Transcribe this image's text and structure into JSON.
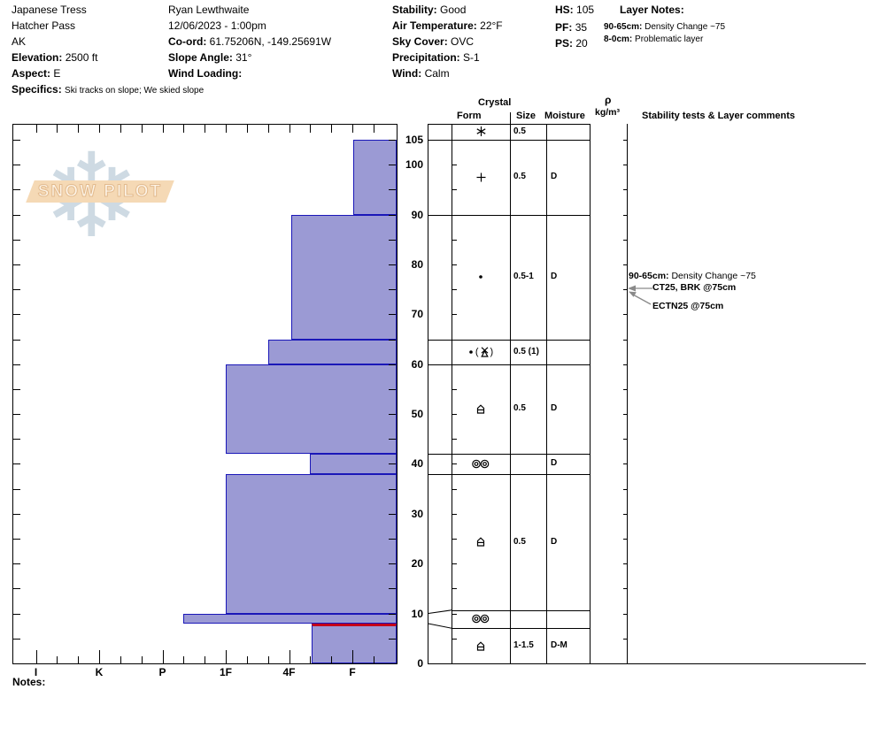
{
  "header": {
    "pit_name": "Japanese Tress",
    "location": "Hatcher Pass",
    "state": "AK",
    "elevation_label": "Elevation:",
    "elevation": "2500 ft",
    "aspect_label": "Aspect:",
    "aspect": "E",
    "specifics_label": "Specifics:",
    "specifics": "Ski tracks on slope; We skied slope",
    "observer": "Ryan Lewthwaite",
    "datetime": "12/06/2023 - 1:00pm",
    "coord_label": "Co-ord:",
    "coord": "61.75206N, -149.25691W",
    "slope_angle_label": "Slope Angle:",
    "slope_angle": "31°",
    "wind_loading_label": "Wind Loading:",
    "wind_loading": "",
    "stability_label": "Stability:",
    "stability": "Good",
    "air_temp_label": "Air Temperature:",
    "air_temp": "22°F",
    "sky_label": "Sky Cover:",
    "sky": "OVC",
    "precip_label": "Precipitation:",
    "precip": "S-1",
    "wind_label": "Wind:",
    "wind": "Calm",
    "hs_label": "HS:",
    "hs": "105",
    "pf_label": "PF:",
    "pf": "35",
    "ps_label": "PS:",
    "ps": "20",
    "layer_notes_label": "Layer Notes:",
    "layer_notes": [
      {
        "range": "90-65cm:",
        "text": "Density Change ~75"
      },
      {
        "range": "8-0cm:",
        "text": "Problematic layer"
      }
    ]
  },
  "watermark": {
    "text": "SNOW PILOT"
  },
  "table_headers": {
    "crystal": "Crystal",
    "form": "Form",
    "size": "Size",
    "moisture": "Moisture",
    "rho": "ρ",
    "rho_units": "kg/m³",
    "comments": "Stability tests & Layer comments"
  },
  "notes_label": "Notes:",
  "chart_data": {
    "type": "bar",
    "title": "Snow pit hardness profile",
    "depth_axis": {
      "unit": "cm",
      "max_cm": 108.2,
      "labeled_ticks": [
        0,
        10,
        20,
        30,
        40,
        50,
        60,
        70,
        80,
        90,
        100,
        105
      ],
      "minor_step_cm": 5
    },
    "hardness_axis": {
      "categories": [
        "I",
        "K",
        "P",
        "1F",
        "4F",
        "F"
      ],
      "codes": [
        0,
        1,
        2,
        3,
        4,
        5
      ],
      "minor_divisions_per_step": 3
    },
    "layers": [
      {
        "surface_row": true,
        "top_cm": 108.2,
        "bottom_cm": 105,
        "form": "stellar",
        "size": "0.5",
        "moisture": "",
        "hardness": null,
        "hardness_code": null
      },
      {
        "top_cm": 105,
        "bottom_cm": 90,
        "form": "plus",
        "size": "0.5",
        "moisture": "D",
        "hardness": "F",
        "hardness_code": 5.02
      },
      {
        "top_cm": 90,
        "bottom_cm": 65,
        "form": "dot",
        "size": "0.5-1",
        "moisture": "D",
        "hardness": "4F",
        "hardness_code": 4.03
      },
      {
        "top_cm": 65,
        "bottom_cm": 60,
        "form": "dot-paren-trix",
        "size": "0.5 (1)",
        "moisture": "",
        "hardness": "4F+",
        "hardness_code": 3.67
      },
      {
        "top_cm": 60,
        "bottom_cm": 42,
        "form": "peak-bar",
        "size": "0.5",
        "moisture": "D",
        "hardness": "1F",
        "hardness_code": 3.0
      },
      {
        "top_cm": 42,
        "bottom_cm": 38,
        "form": "double-circles",
        "size": "",
        "moisture": "D",
        "hardness": "4F-",
        "hardness_code": 4.33
      },
      {
        "top_cm": 38,
        "bottom_cm": 10,
        "form": "peak-bar",
        "size": "0.5",
        "moisture": "D",
        "hardness": "1F",
        "hardness_code": 3.0
      },
      {
        "top_cm": 10,
        "bottom_cm": 8,
        "form": "double-circles",
        "size": "",
        "moisture": "",
        "hardness": "P-",
        "hardness_code": 2.33
      },
      {
        "top_cm": 8,
        "bottom_cm": 0,
        "form": "peak-bar",
        "size": "1-1.5",
        "moisture": "D-M",
        "hardness": "4F-",
        "hardness_code": 4.35,
        "flagged_red": true
      }
    ],
    "flag_line": {
      "depth_cm": 8,
      "color": "#c40018"
    },
    "bar_fill": "#9b9ad4",
    "bar_border": "#1a17b8",
    "annotations": [
      {
        "bold": "90-65cm:",
        "text": " Density Change ~75",
        "target_depth_cm": null
      },
      {
        "bold": "",
        "text": "CT25, BRK @75cm",
        "target_depth_cm": 75
      },
      {
        "bold": "",
        "text": "ECTN25 @75cm",
        "target_depth_cm": 75
      }
    ]
  }
}
